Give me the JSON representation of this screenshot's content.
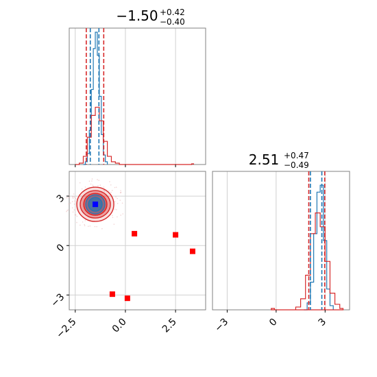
{
  "colors": {
    "red": "#d62728",
    "blue": "#1f77b4",
    "marker_blue": "#0000ff",
    "marker_red": "#ff0000",
    "axes": "#808080",
    "grid": "#d0d0d0"
  },
  "titles": {
    "x_title": {
      "center": "−1.50",
      "sup": "+0.42",
      "sub": "−0.40"
    },
    "y_title": {
      "center": "2.51",
      "sup": "+0.47",
      "sub": "−0.49"
    }
  },
  "chart_data": [
    {
      "type": "line",
      "panel": "x-marginal-histogram",
      "title": "−1.50 +0.42 −0.40",
      "xlim": [
        -2.8,
        4.0
      ],
      "ylim": [
        0,
        1.0
      ],
      "grid": true,
      "series": [
        {
          "color": "#1f77b4",
          "x": [
            -2.1,
            -2.0,
            -1.9,
            -1.8,
            -1.7,
            -1.6,
            -1.5,
            -1.4,
            -1.3,
            -1.2,
            -1.1,
            -1.0,
            -0.9
          ],
          "values": [
            0.0,
            0.02,
            0.08,
            0.25,
            0.55,
            0.85,
            0.97,
            0.8,
            0.5,
            0.22,
            0.07,
            0.02,
            0.0
          ]
        },
        {
          "color": "#d62728",
          "x": [
            -2.5,
            -2.3,
            -2.1,
            -1.9,
            -1.7,
            -1.5,
            -1.3,
            -1.1,
            -0.9,
            -0.7,
            -0.5,
            -0.3,
            3.3,
            3.4
          ],
          "values": [
            0.0,
            0.01,
            0.06,
            0.2,
            0.36,
            0.42,
            0.32,
            0.17,
            0.06,
            0.02,
            0.01,
            0.0,
            0.005,
            0.0
          ]
        }
      ],
      "quantile_lines": {
        "red": [
          -1.95,
          -1.08
        ],
        "blue": [
          -1.75,
          -1.32
        ]
      }
    },
    {
      "type": "scatter",
      "panel": "joint-2d-contour",
      "xlim": [
        -2.8,
        4.0
      ],
      "ylim": [
        -3.9,
        4.5
      ],
      "xticks": [
        "−2.5",
        "0.0",
        "2.5"
      ],
      "yticks": [
        "3",
        "0",
        "−3"
      ],
      "grid": true,
      "contour_center": [
        -1.5,
        2.5
      ],
      "truth_point": [
        -1.5,
        2.5
      ],
      "red_markers": [
        [
          0.45,
          0.72
        ],
        [
          2.5,
          0.65
        ],
        [
          3.35,
          -0.35
        ],
        [
          -0.65,
          -2.95
        ],
        [
          0.1,
          -3.2
        ]
      ]
    },
    {
      "type": "line",
      "panel": "y-marginal-histogram",
      "title": "2.51 +0.47 −0.49",
      "xlim": [
        -3.9,
        4.5
      ],
      "ylim": [
        0,
        1.0
      ],
      "xticks": [
        "−3",
        "0",
        "3"
      ],
      "grid": true,
      "series": [
        {
          "color": "#1f77b4",
          "x": [
            1.7,
            1.9,
            2.1,
            2.3,
            2.5,
            2.7,
            2.9,
            3.1,
            3.3,
            3.5
          ],
          "values": [
            0.0,
            0.05,
            0.2,
            0.55,
            0.85,
            0.9,
            0.5,
            0.15,
            0.03,
            0.0
          ]
        },
        {
          "color": "#d62728",
          "x": [
            0.9,
            1.2,
            1.5,
            1.8,
            2.1,
            2.4,
            2.7,
            3.0,
            3.3,
            3.6,
            3.9,
            4.1,
            -0.3,
            -0.1
          ],
          "values": [
            0.0,
            0.02,
            0.08,
            0.25,
            0.55,
            0.7,
            0.6,
            0.35,
            0.12,
            0.04,
            0.01,
            0.0,
            0.01,
            0.0
          ]
        }
      ],
      "quantile_lines": {
        "red": [
          2.0,
          2.98
        ],
        "blue": [
          2.1,
          2.8
        ]
      }
    }
  ]
}
